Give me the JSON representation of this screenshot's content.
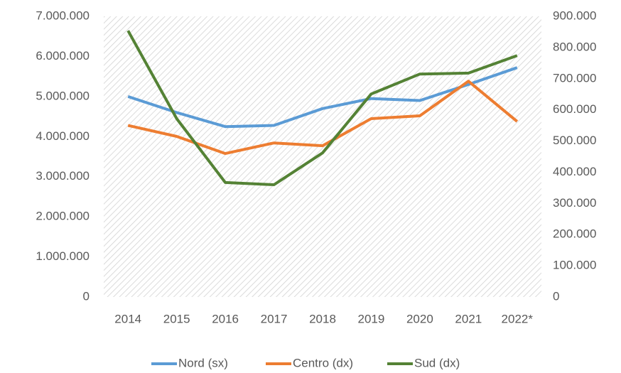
{
  "chart_data": {
    "type": "line",
    "categories": [
      "2014",
      "2015",
      "2016",
      "2017",
      "2018",
      "2019",
      "2020",
      "2021",
      "2022*"
    ],
    "series": [
      {
        "name": "Nord (sx)",
        "color": "#5b9bd5",
        "axis": "y",
        "values": [
          5000000,
          4600000,
          4250000,
          4280000,
          4700000,
          4950000,
          4900000,
          5300000,
          5720000
        ]
      },
      {
        "name": "Centro (dx)",
        "color": "#ed7d31",
        "axis": "y2",
        "values": [
          550000,
          515000,
          460000,
          494000,
          485000,
          572000,
          581000,
          692000,
          563000
        ]
      },
      {
        "name": "Sud (dx)",
        "color": "#548235",
        "axis": "y2",
        "values": [
          854000,
          572000,
          367000,
          360000,
          462000,
          651000,
          715000,
          718000,
          774000
        ]
      }
    ],
    "ylim": [
      0,
      7000000
    ],
    "yticks": [
      0,
      {
        "value": 1000000,
        "label": "1.000.000"
      },
      {
        "value": 2000000,
        "label": "2.000.000"
      },
      {
        "value": 3000000,
        "label": "3.000.000"
      },
      {
        "value": 4000000,
        "label": "4.000.000"
      },
      {
        "value": 5000000,
        "label": "5.000.000"
      },
      {
        "value": 6000000,
        "label": "6.000.000"
      },
      {
        "value": 7000000,
        "label": "7.000.000"
      }
    ],
    "y2lim": [
      0,
      900000
    ],
    "y2ticks": [
      0,
      {
        "value": 100000,
        "label": "100.000"
      },
      {
        "value": 200000,
        "label": "200.000"
      },
      {
        "value": 300000,
        "label": "300.000"
      },
      {
        "value": 400000,
        "label": "400.000"
      },
      {
        "value": 500000,
        "label": "500.000"
      },
      {
        "value": 600000,
        "label": "600.000"
      },
      {
        "value": 700000,
        "label": "700.000"
      },
      {
        "value": 800000,
        "label": "800.000"
      },
      {
        "value": 900000,
        "label": "900.000"
      }
    ],
    "legend": "bottom"
  }
}
